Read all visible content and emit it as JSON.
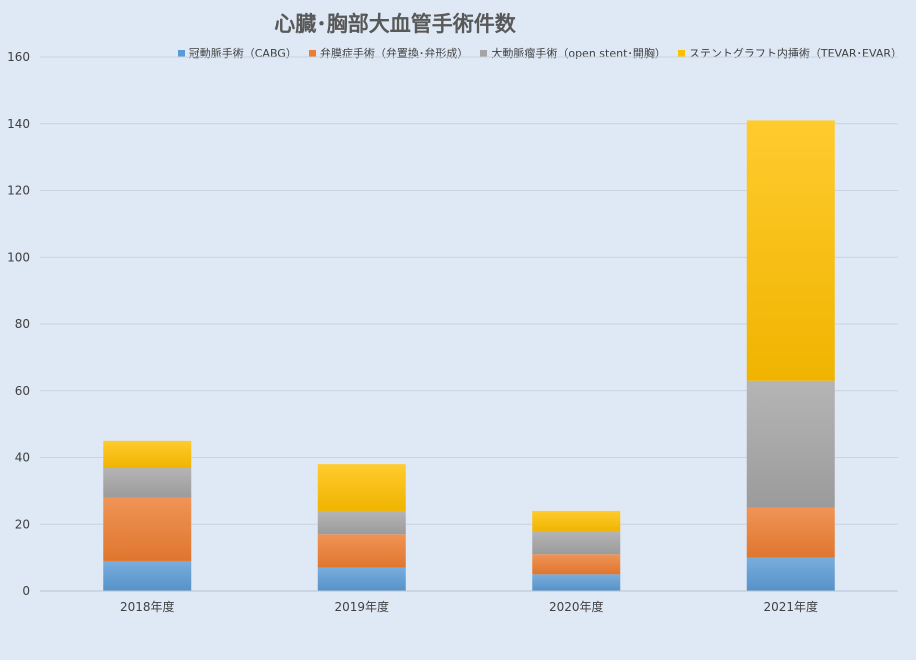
{
  "chart_data": {
    "type": "bar",
    "stacked": true,
    "title": "心臓･胸部大血管手術件数",
    "categories": [
      "2018年度",
      "2019年度",
      "2020年度",
      "2021年度"
    ],
    "series": [
      {
        "name": "冠動脈手術（CABG）",
        "color": "#5b9bd5",
        "values": [
          9,
          7,
          5,
          10
        ]
      },
      {
        "name": "弁膜症手術（弁置換･弁形成）",
        "color": "#ed7d31",
        "values": [
          19,
          10,
          6,
          15
        ]
      },
      {
        "name": "大動脈瘤手術（open stent･開胸）",
        "color": "#a5a5a5",
        "values": [
          9,
          7,
          7,
          38
        ]
      },
      {
        "name": "ステントグラフト内挿術（TEVAR･EVAR）",
        "color": "#ffc000",
        "values": [
          8,
          14,
          6,
          78
        ]
      }
    ],
    "ylim": [
      0,
      160
    ],
    "yticks": [
      0,
      20,
      40,
      60,
      80,
      100,
      120,
      140,
      160
    ],
    "grid": true,
    "legend_position": "top-right"
  }
}
